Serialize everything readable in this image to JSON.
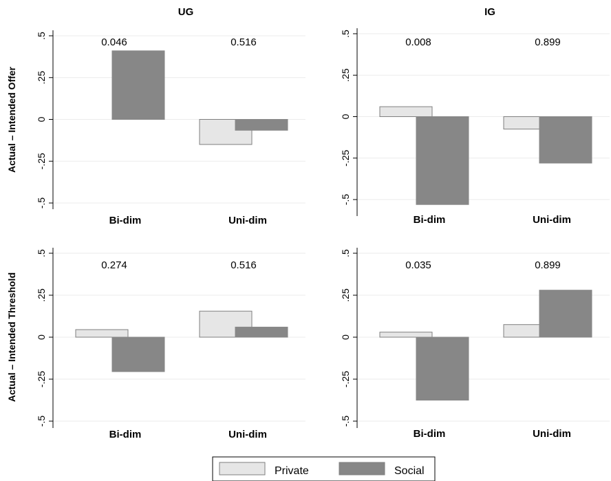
{
  "colors": {
    "private": "#e6e6e6",
    "social": "#878787",
    "axis": "#000000",
    "grid": "#ebebeb",
    "border": "#7f7f7f"
  },
  "legend": {
    "position": "bottom",
    "entries": [
      "Private",
      "Social"
    ]
  },
  "col_titles": [
    "UG",
    "IG"
  ],
  "row_labels": [
    "Actual – Intended Offer",
    "Actual – Intended Threshold"
  ],
  "chart_data": [
    {
      "type": "bar",
      "title": "UG",
      "ylabel": "Actual – Intended Offer",
      "categories": [
        "Bi-dim",
        "Uni-dim"
      ],
      "series": [
        {
          "name": "Private",
          "values": [
            0.0,
            -0.15
          ]
        },
        {
          "name": "Social",
          "values": [
            0.41,
            -0.065
          ]
        }
      ],
      "annotations": [
        "0.046",
        "0.516"
      ],
      "ylim": [
        -0.5,
        0.5
      ],
      "ticks": [
        -0.5,
        -0.25,
        0,
        0.25,
        0.5
      ],
      "tick_labels": [
        "-.5",
        "-.25",
        "0",
        ".25",
        ".5"
      ],
      "grid": true
    },
    {
      "type": "bar",
      "title": "IG",
      "ylabel": "",
      "categories": [
        "Bi-dim",
        "Uni-dim"
      ],
      "series": [
        {
          "name": "Private",
          "values": [
            0.06,
            -0.075
          ]
        },
        {
          "name": "Social",
          "values": [
            -0.53,
            -0.28
          ]
        }
      ],
      "annotations": [
        "0.008",
        "0.899"
      ],
      "ylim": [
        -0.5,
        0.5
      ],
      "ticks": [
        -0.5,
        -0.25,
        0,
        0.25,
        0.5
      ],
      "tick_labels": [
        "-.5",
        "-.25",
        "0",
        ".25",
        ".5"
      ],
      "grid": true
    },
    {
      "type": "bar",
      "title": "",
      "ylabel": "Actual – Intended Threshold",
      "categories": [
        "Bi-dim",
        "Uni-dim"
      ],
      "series": [
        {
          "name": "Private",
          "values": [
            0.045,
            0.155
          ]
        },
        {
          "name": "Social",
          "values": [
            -0.205,
            0.06
          ]
        }
      ],
      "annotations": [
        "0.274",
        "0.516"
      ],
      "ylim": [
        -0.5,
        0.5
      ],
      "ticks": [
        -0.5,
        -0.25,
        0,
        0.25,
        0.5
      ],
      "tick_labels": [
        "-.5",
        "-.25",
        "0",
        ".25",
        ".5"
      ],
      "grid": true
    },
    {
      "type": "bar",
      "title": "",
      "ylabel": "",
      "categories": [
        "Bi-dim",
        "Uni-dim"
      ],
      "series": [
        {
          "name": "Private",
          "values": [
            0.03,
            0.075
          ]
        },
        {
          "name": "Social",
          "values": [
            -0.375,
            0.28
          ]
        }
      ],
      "annotations": [
        "0.035",
        "0.899"
      ],
      "ylim": [
        -0.5,
        0.5
      ],
      "ticks": [
        -0.5,
        -0.25,
        0,
        0.25,
        0.5
      ],
      "tick_labels": [
        "-.5",
        "-.25",
        "0",
        ".25",
        ".5"
      ],
      "grid": true
    }
  ]
}
